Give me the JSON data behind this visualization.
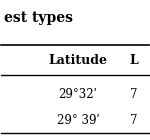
{
  "title": "est types",
  "columns": [
    "Latitude",
    "L"
  ],
  "rows": [
    [
      "29°32ʹ",
      "7"
    ],
    [
      "29° 39ʹ",
      "7"
    ]
  ],
  "background_color": "#ffffff",
  "header_fontsize": 9,
  "data_fontsize": 8.5,
  "title_fontsize": 10
}
